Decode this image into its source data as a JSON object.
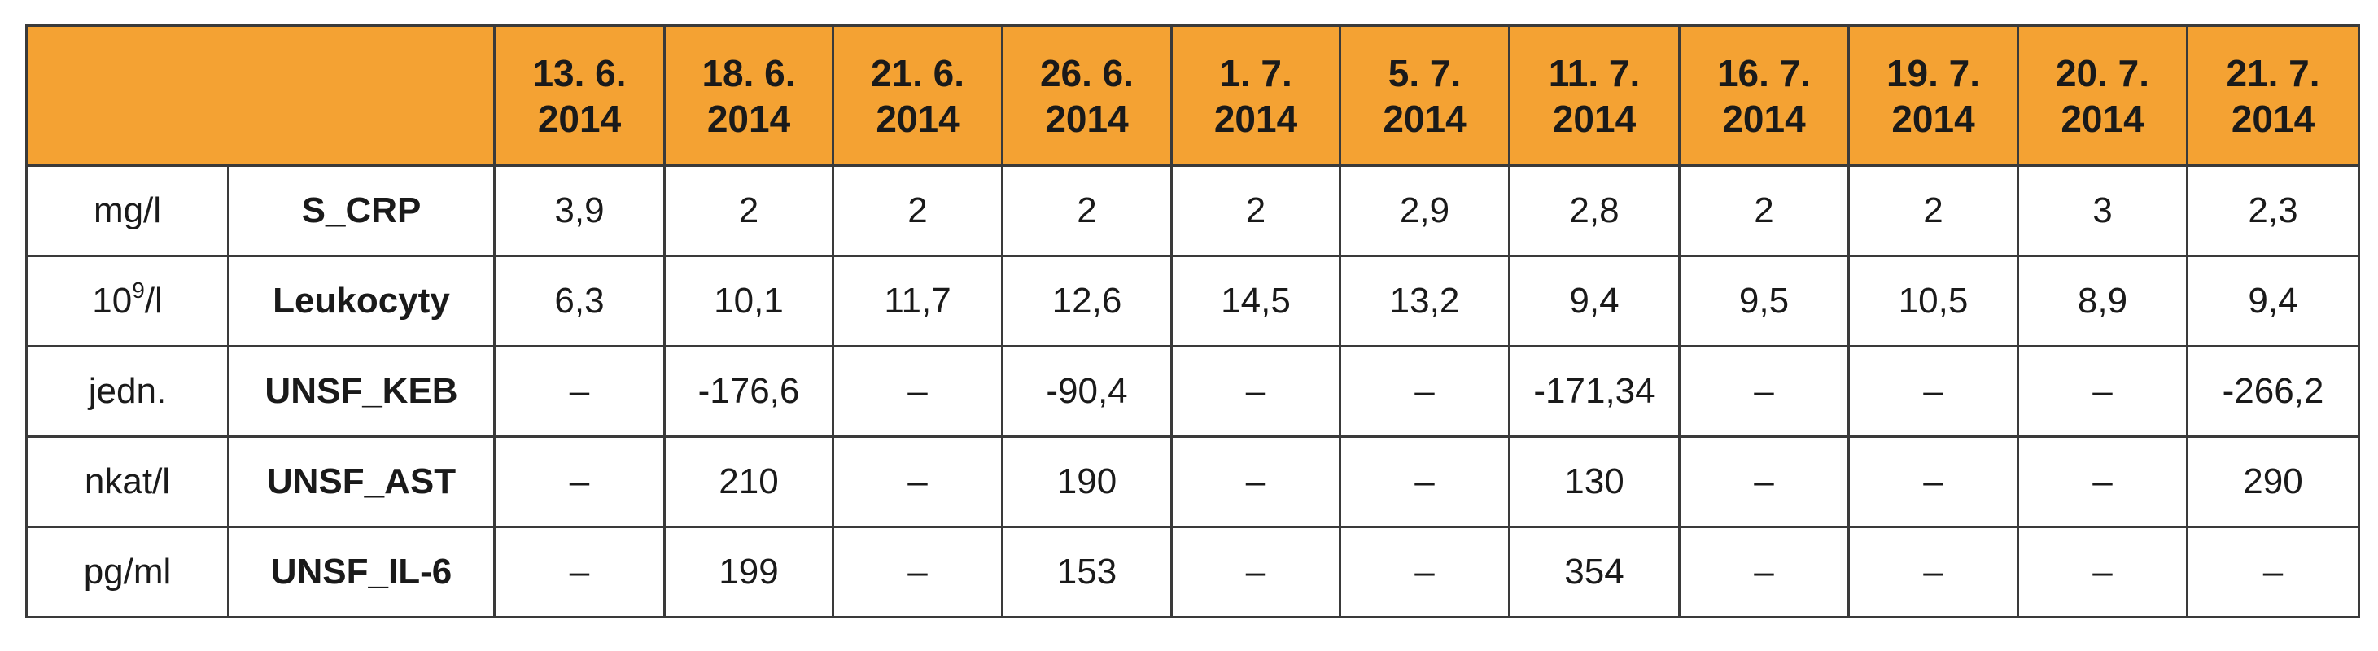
{
  "header": {
    "dates": [
      [
        "13. 6.",
        "2014"
      ],
      [
        "18. 6.",
        "2014"
      ],
      [
        "21. 6.",
        "2014"
      ],
      [
        "26. 6.",
        "2014"
      ],
      [
        "1. 7.",
        "2014"
      ],
      [
        "5. 7.",
        "2014"
      ],
      [
        "11. 7.",
        "2014"
      ],
      [
        "16. 7.",
        "2014"
      ],
      [
        "19. 7.",
        "2014"
      ],
      [
        "20. 7.",
        "2014"
      ],
      [
        "21. 7.",
        "2014"
      ]
    ]
  },
  "rows": [
    {
      "unit": "mg/l",
      "param": "S_CRP",
      "values": [
        "3,9",
        "2",
        "2",
        "2",
        "2",
        "2,9",
        "2,8",
        "2",
        "2",
        "3",
        "2,3"
      ]
    },
    {
      "unit_base": "10",
      "unit_sup": "9",
      "unit_rest": "/l",
      "param": "Leukocyty",
      "values": [
        "6,3",
        "10,1",
        "11,7",
        "12,6",
        "14,5",
        "13,2",
        "9,4",
        "9,5",
        "10,5",
        "8,9",
        "9,4"
      ]
    },
    {
      "unit": "jedn.",
      "param": "UNSF_KEB",
      "values": [
        "–",
        "-176,6",
        "–",
        "-90,4",
        "–",
        "–",
        "-171,34",
        "–",
        "–",
        "–",
        "-266,2"
      ]
    },
    {
      "unit": "nkat/l",
      "param": "UNSF_AST",
      "values": [
        "–",
        "210",
        "–",
        "190",
        "–",
        "–",
        "130",
        "–",
        "–",
        "–",
        "290"
      ]
    },
    {
      "unit": "pg/ml",
      "param": "UNSF_IL-6",
      "values": [
        "–",
        "199",
        "–",
        "153",
        "–",
        "–",
        "354",
        "–",
        "–",
        "–",
        "–"
      ]
    }
  ],
  "colors": {
    "header_bg": "#f4a233",
    "border": "#3a3a3a"
  }
}
